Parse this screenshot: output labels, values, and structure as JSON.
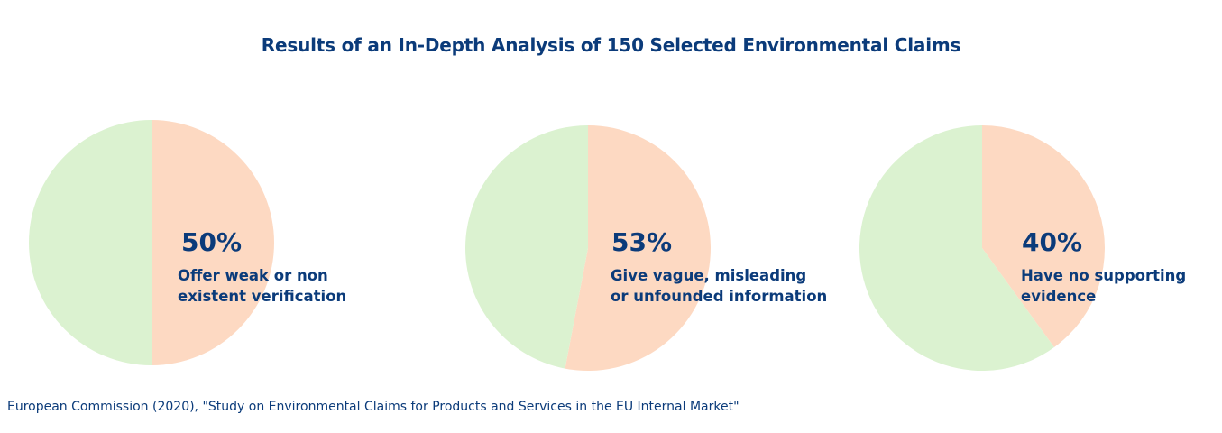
{
  "title": "Results of an In-Depth Analysis of 150 Selected Environmental Claims",
  "source": "European Commission (2020), \"Study on Environmental Claims for Products and Services in the EU Internal Market\"",
  "colors": {
    "highlight": "#fdd9c2",
    "remainder": "#dbf2d0",
    "text": "#0b3b7a"
  },
  "chart_data": [
    {
      "type": "pie",
      "values": [
        50,
        50
      ],
      "colors": [
        "#fdd9c2",
        "#dbf2d0"
      ],
      "value_label": "50%",
      "label_lines": [
        "Offer weak or non",
        "existent verification"
      ]
    },
    {
      "type": "pie",
      "values": [
        53,
        47
      ],
      "colors": [
        "#fdd9c2",
        "#dbf2d0"
      ],
      "value_label": "53%",
      "label_lines": [
        "Give vague, misleading",
        "or unfounded information"
      ]
    },
    {
      "type": "pie",
      "values": [
        40,
        60
      ],
      "colors": [
        "#fdd9c2",
        "#dbf2d0"
      ],
      "value_label": "40%",
      "label_lines": [
        "Have no supporting",
        "evidence"
      ]
    }
  ]
}
